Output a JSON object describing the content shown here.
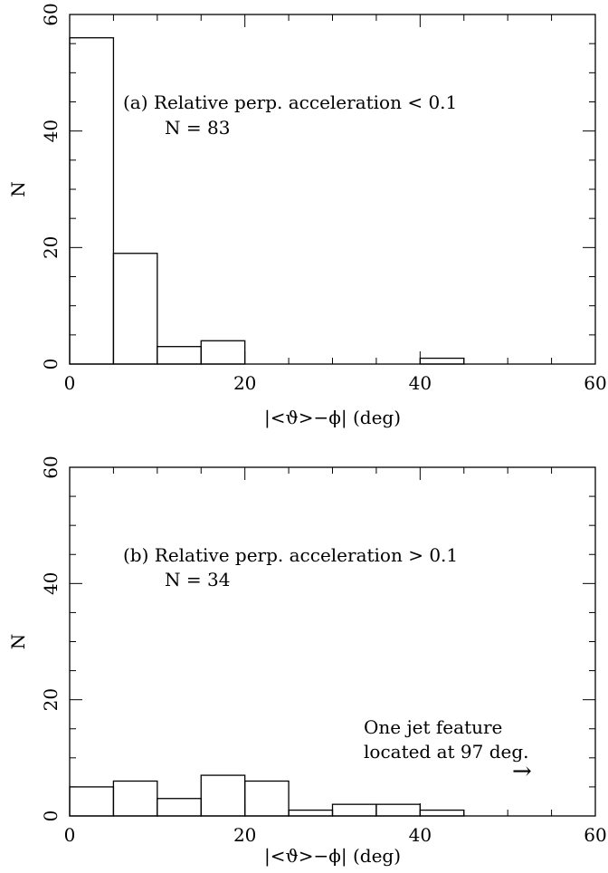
{
  "chart_data": [
    {
      "type": "bar",
      "bin_edges": [
        0,
        5,
        10,
        15,
        20,
        25,
        30,
        35,
        40,
        45,
        50,
        55,
        60
      ],
      "values": [
        56,
        19,
        3,
        4,
        0,
        0,
        0,
        0,
        1,
        0,
        0,
        0
      ],
      "xlim": [
        0,
        60
      ],
      "ylim": [
        0,
        60
      ],
      "xticks": [
        0,
        20,
        40,
        60
      ],
      "yticks": [
        0,
        20,
        40,
        60
      ],
      "xlabel": "|<ϑ>−ϕ| (deg)",
      "ylabel": "N",
      "annotations": [
        "(a) Relative perp. acceleration < 0.1",
        "N = 83"
      ]
    },
    {
      "type": "bar",
      "bin_edges": [
        0,
        5,
        10,
        15,
        20,
        25,
        30,
        35,
        40,
        45,
        50,
        55,
        60
      ],
      "values": [
        5,
        6,
        3,
        7,
        6,
        1,
        2,
        2,
        1,
        0,
        0,
        0
      ],
      "xlim": [
        0,
        60
      ],
      "ylim": [
        0,
        60
      ],
      "xticks": [
        0,
        20,
        40,
        60
      ],
      "yticks": [
        0,
        20,
        40,
        60
      ],
      "xlabel": "|<ϑ>−ϕ| (deg)",
      "ylabel": "N",
      "annotations": [
        "(b) Relative perp. acceleration > 0.1",
        "N = 34",
        "One jet feature",
        "located at 97 deg.",
        "→"
      ]
    }
  ]
}
